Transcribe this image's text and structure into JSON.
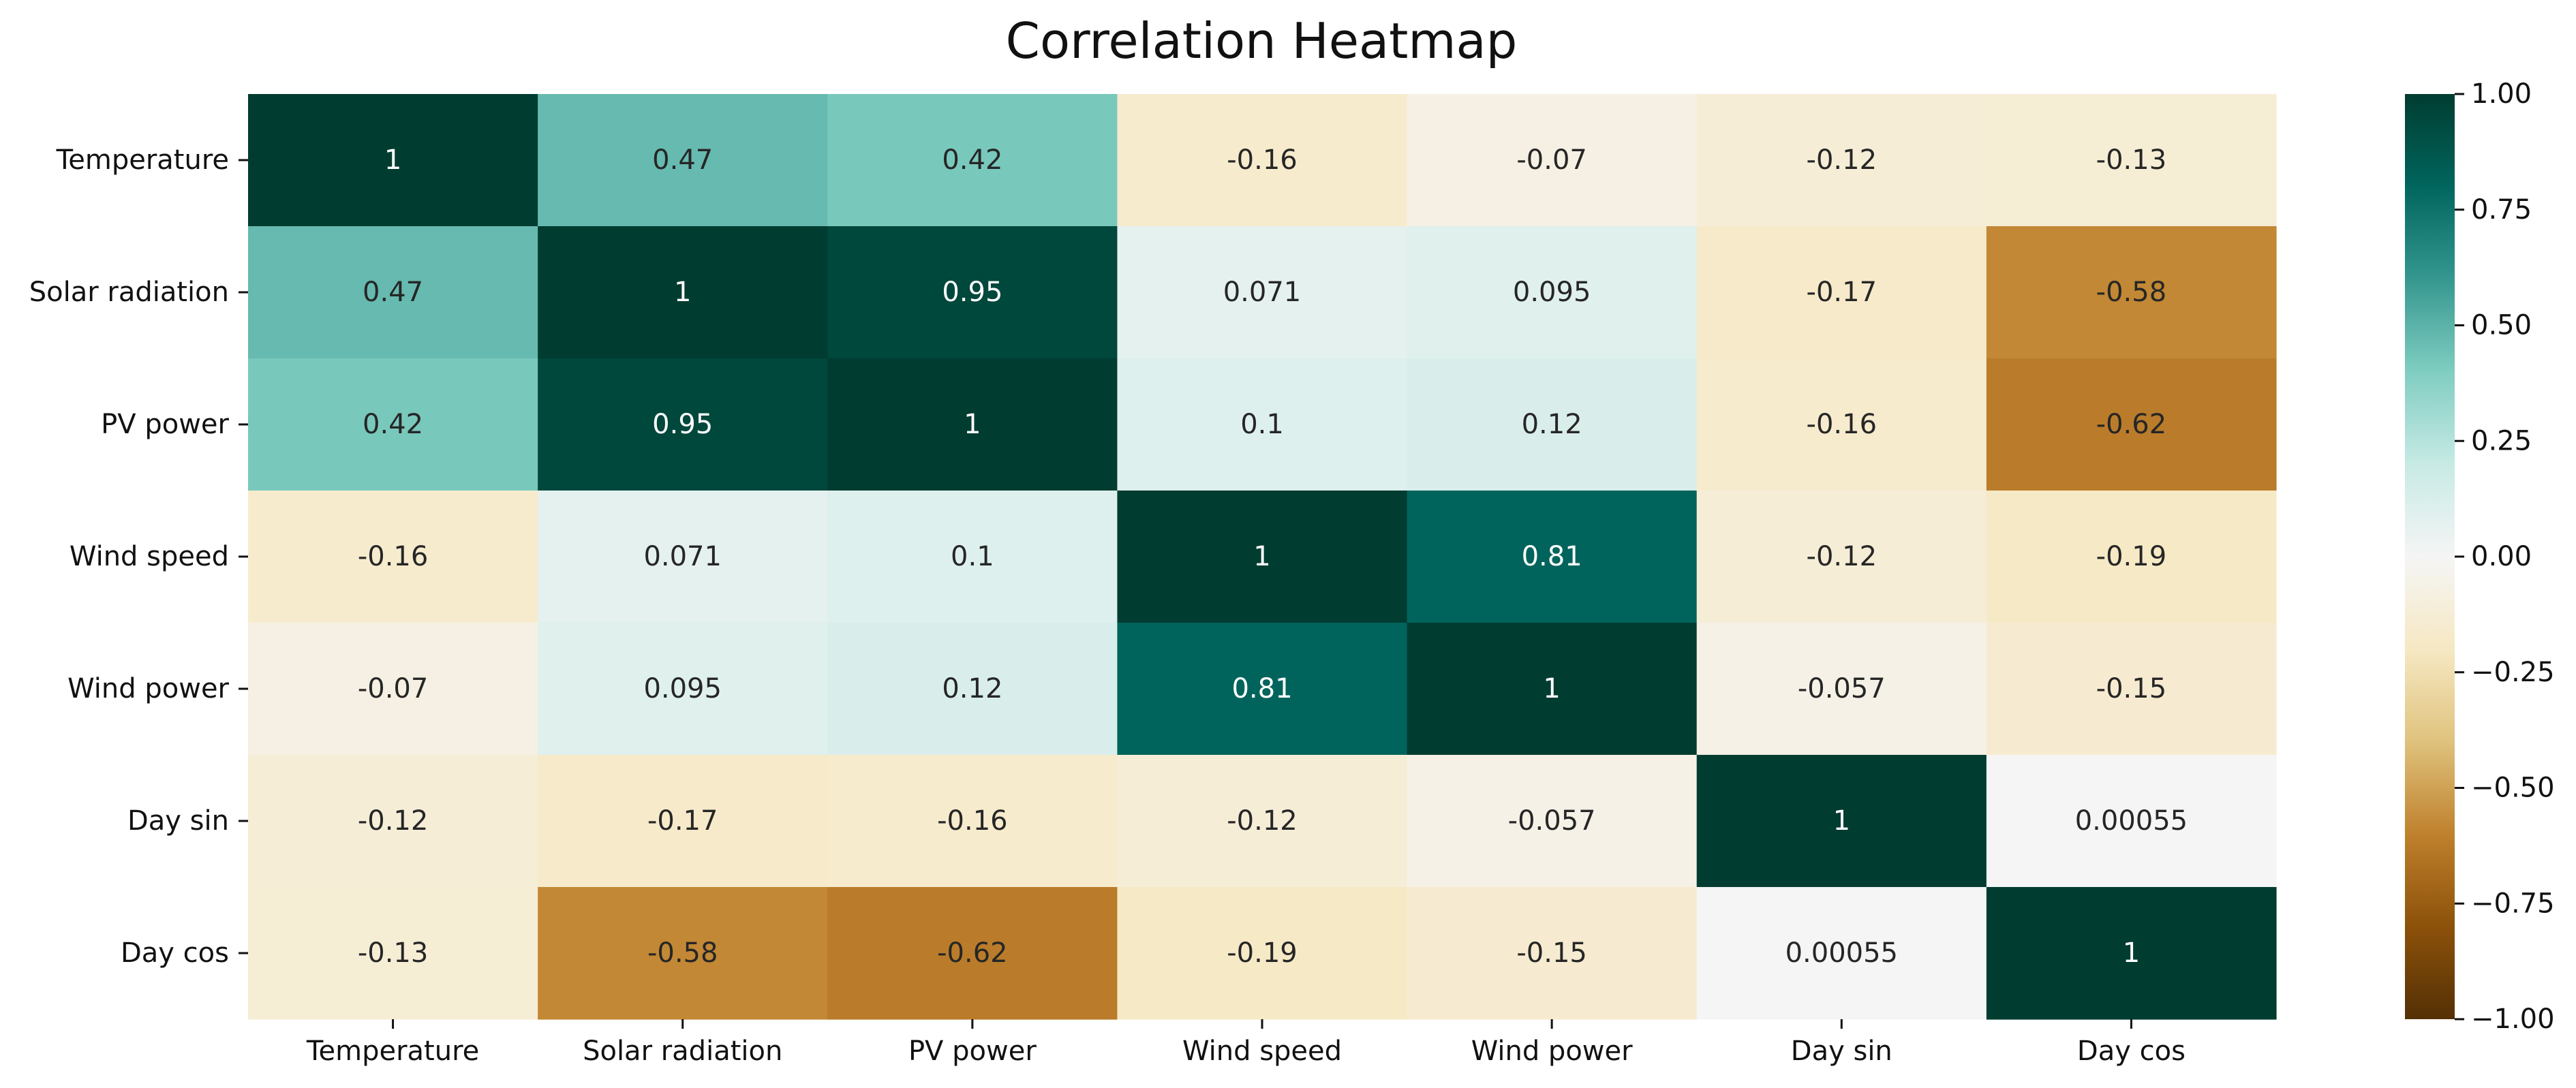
{
  "chart_data": {
    "type": "heatmap",
    "title": "Correlation Heatmap",
    "xlabel": "",
    "ylabel": "",
    "x_labels": [
      "Temperature",
      "Solar radiation",
      "PV power",
      "Wind speed",
      "Wind power",
      "Day sin",
      "Day cos"
    ],
    "y_labels": [
      "Temperature",
      "Solar radiation",
      "PV power",
      "Wind speed",
      "Wind power",
      "Day sin",
      "Day cos"
    ],
    "values": [
      [
        1,
        0.47,
        0.42,
        -0.16,
        -0.07,
        -0.12,
        -0.13
      ],
      [
        0.47,
        1,
        0.95,
        0.071,
        0.095,
        -0.17,
        -0.58
      ],
      [
        0.42,
        0.95,
        1,
        0.1,
        0.12,
        -0.16,
        -0.62
      ],
      [
        -0.16,
        0.071,
        0.1,
        1,
        0.81,
        -0.12,
        -0.19
      ],
      [
        -0.07,
        0.095,
        0.12,
        0.81,
        1,
        -0.057,
        -0.15
      ],
      [
        -0.12,
        -0.17,
        -0.16,
        -0.12,
        -0.057,
        1,
        0.00055
      ],
      [
        -0.13,
        -0.58,
        -0.62,
        -0.19,
        -0.15,
        0.00055,
        1
      ]
    ],
    "annotations": [
      [
        "1",
        "0.47",
        "0.42",
        "-0.16",
        "-0.07",
        "-0.12",
        "-0.13"
      ],
      [
        "0.47",
        "1",
        "0.95",
        "0.071",
        "0.095",
        "-0.17",
        "-0.58"
      ],
      [
        "0.42",
        "0.95",
        "1",
        "0.1",
        "0.12",
        "-0.16",
        "-0.62"
      ],
      [
        "-0.16",
        "0.071",
        "0.1",
        "1",
        "0.81",
        "-0.12",
        "-0.19"
      ],
      [
        "-0.07",
        "0.095",
        "0.12",
        "0.81",
        "1",
        "-0.057",
        "-0.15"
      ],
      [
        "-0.12",
        "-0.17",
        "-0.16",
        "-0.12",
        "-0.057",
        "1",
        "0.00055"
      ],
      [
        "-0.13",
        "-0.58",
        "-0.62",
        "-0.19",
        "-0.15",
        "0.00055",
        "1"
      ]
    ],
    "colorbar": {
      "vmin": -1,
      "vmax": 1,
      "colormap": "BrBG",
      "ticks": [
        1.0,
        0.75,
        0.5,
        0.25,
        0.0,
        -0.25,
        -0.5,
        -0.75,
        -1.0
      ],
      "tick_labels": [
        "1.00",
        "0.75",
        "0.50",
        "0.25",
        "0.00",
        "−0.25",
        "−0.50",
        "−0.75",
        "−1.00"
      ]
    },
    "colors": {
      "text_light": "#ffffff",
      "text_dark": "#262626",
      "axis": "#111111"
    }
  }
}
